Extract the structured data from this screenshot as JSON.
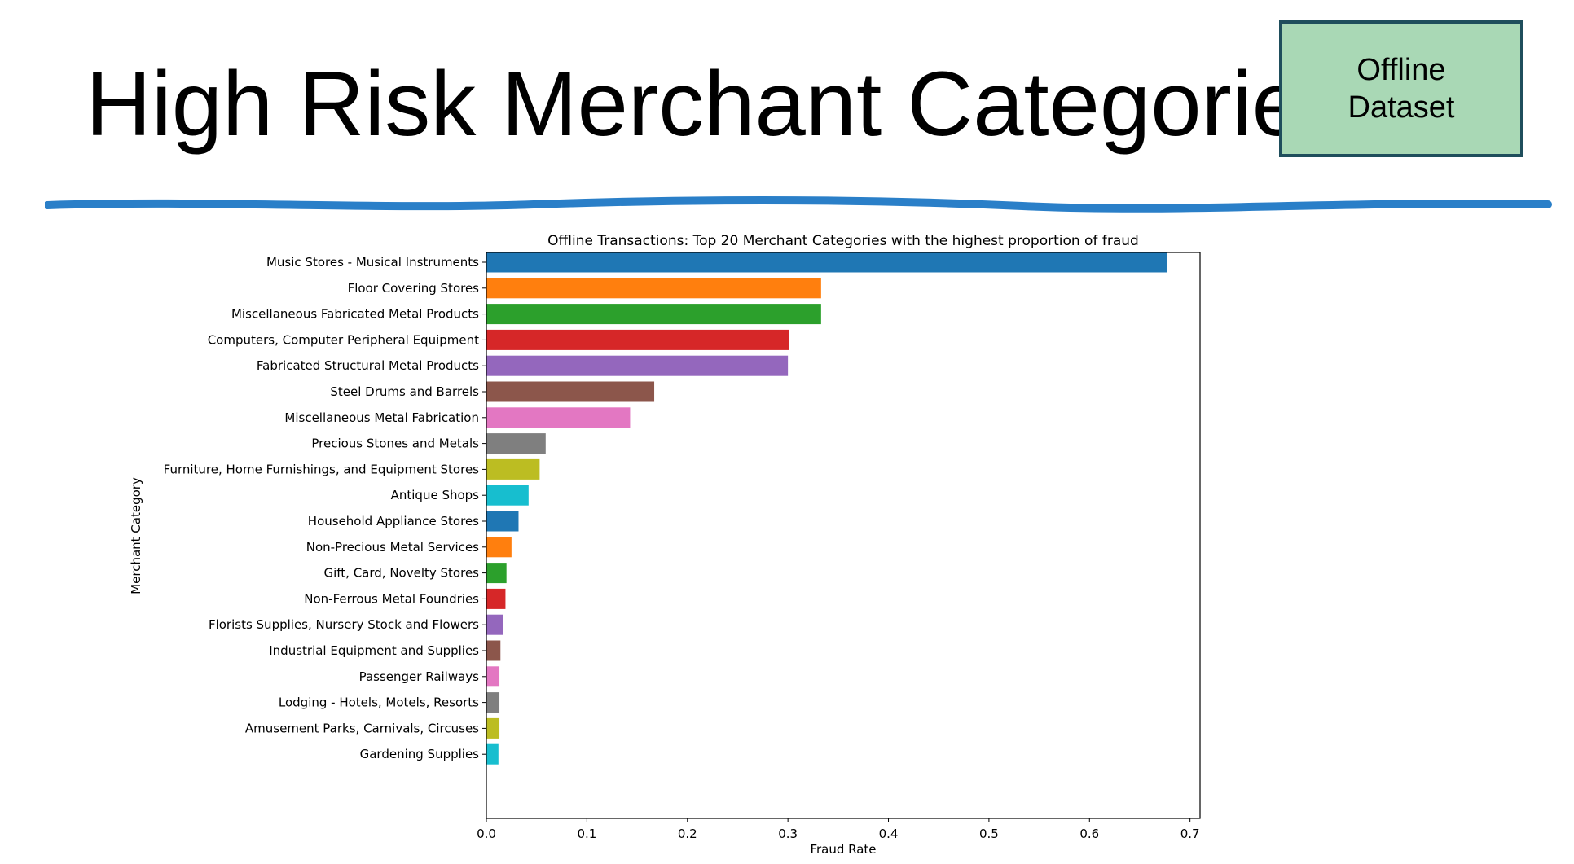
{
  "slide": {
    "title": "High Risk Merchant Categories",
    "badge_line1": "Offline",
    "badge_line2": "Dataset",
    "badge_color": "#a9d8b5",
    "badge_border_color": "#1f4e5c",
    "divider_color": "#2a7fc8"
  },
  "chart_data": {
    "type": "bar",
    "orientation": "horizontal",
    "title": "Offline Transactions: Top 20 Merchant Categories with the highest proportion of fraud",
    "xlabel": "Fraud Rate",
    "ylabel": "Merchant Category",
    "xlim": [
      0,
      0.71
    ],
    "xticks": [
      "0.0",
      "0.1",
      "0.2",
      "0.3",
      "0.4",
      "0.5",
      "0.6",
      "0.7"
    ],
    "grid": false,
    "categories": [
      "Music Stores - Musical Instruments",
      "Floor Covering Stores",
      "Miscellaneous Fabricated Metal Products",
      "Computers, Computer Peripheral Equipment",
      "Fabricated Structural Metal Products",
      "Steel Drums and Barrels",
      "Miscellaneous Metal Fabrication",
      "Precious Stones and Metals",
      "Furniture, Home Furnishings, and Equipment Stores",
      "Antique Shops",
      "Household Appliance Stores",
      "Non-Precious Metal Services",
      "Gift, Card, Novelty Stores",
      "Non-Ferrous Metal Foundries",
      "Florists Supplies, Nursery Stock and Flowers",
      "Industrial Equipment and Supplies",
      "Passenger Railways",
      "Lodging - Hotels, Motels, Resorts",
      "Amusement Parks, Carnivals, Circuses",
      "Gardening Supplies"
    ],
    "values": [
      0.677,
      0.333,
      0.333,
      0.301,
      0.3,
      0.167,
      0.143,
      0.059,
      0.053,
      0.042,
      0.032,
      0.025,
      0.02,
      0.019,
      0.017,
      0.014,
      0.013,
      0.013,
      0.013,
      0.012
    ],
    "colors": [
      "#1f77b4",
      "#ff7f0e",
      "#2ca02c",
      "#d62728",
      "#9467bd",
      "#8c564b",
      "#e377c2",
      "#7f7f7f",
      "#bcbd22",
      "#17becf",
      "#1f77b4",
      "#ff7f0e",
      "#2ca02c",
      "#d62728",
      "#9467bd",
      "#8c564b",
      "#e377c2",
      "#7f7f7f",
      "#bcbd22",
      "#17becf"
    ]
  }
}
